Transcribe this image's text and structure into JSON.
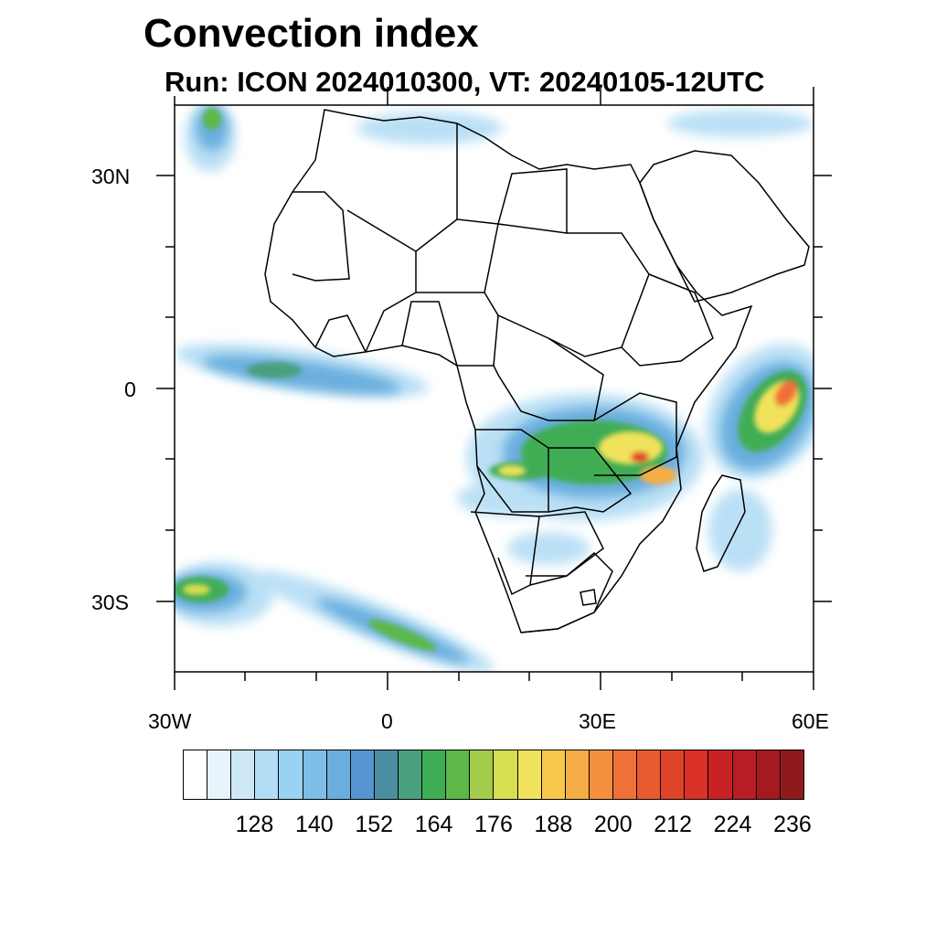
{
  "title": "Convection index",
  "subtitle": "Run: ICON 2024010300,  VT: 20240105-12UTC",
  "map": {
    "lat_labels": [
      "30N",
      "0",
      "30S"
    ],
    "lon_labels": [
      "30W",
      "0",
      "30E",
      "60E"
    ],
    "extent": {
      "lon": [
        -30,
        60
      ],
      "lat": [
        -40,
        40
      ]
    }
  },
  "colorbar": {
    "colors": [
      "#ffffff",
      "#e8f4fb",
      "#cde8f7",
      "#b3ddf4",
      "#9ad3f2",
      "#7fbde9",
      "#6aaede",
      "#5596d0",
      "#4a8fa0",
      "#48a07c",
      "#3fad55",
      "#5cb849",
      "#a3cc4d",
      "#d6de52",
      "#f0e25a",
      "#f7c84d",
      "#f7ad45",
      "#f5913e",
      "#f0703a",
      "#e85a30",
      "#e04428",
      "#d93028",
      "#c92226",
      "#b81c24",
      "#a51a20",
      "#8f1a1c"
    ],
    "labels": [
      "128",
      "140",
      "152",
      "164",
      "176",
      "188",
      "200",
      "212",
      "224",
      "236"
    ]
  }
}
